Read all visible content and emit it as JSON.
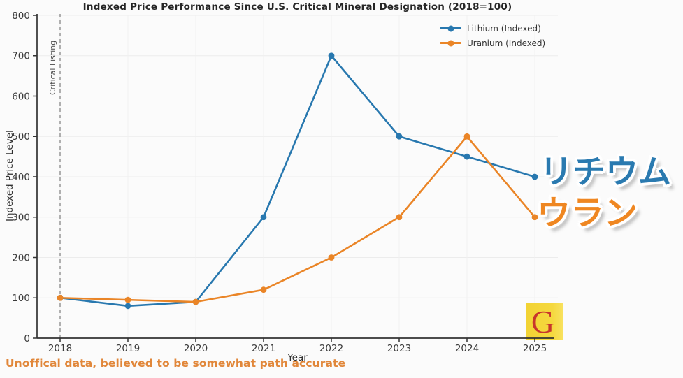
{
  "title": "Indexed Price Performance Since U.S. Critical Mineral Designation (2018=100)",
  "chart_data": {
    "type": "line",
    "x": [
      "2018",
      "2019",
      "2020",
      "2021",
      "2022",
      "2023",
      "2024",
      "2025"
    ],
    "series": [
      {
        "name": "Lithium (Indexed)",
        "color": "#2878af",
        "values": [
          100,
          80,
          90,
          300,
          700,
          500,
          450,
          400
        ]
      },
      {
        "name": "Uranium (Indexed)",
        "color": "#ea8527",
        "values": [
          100,
          95,
          90,
          120,
          200,
          300,
          500,
          300
        ]
      }
    ],
    "xlabel": "Year",
    "ylabel": "Indexed Price Level",
    "ylim": [
      0,
      800
    ],
    "yticks": [
      0,
      100,
      200,
      300,
      400,
      500,
      600,
      700,
      800
    ],
    "grid": true,
    "legend_position": "upper-right",
    "vline": {
      "x": "2018",
      "label": "Critical Listing",
      "style": "dashed",
      "color": "#8f8f8f"
    }
  },
  "annotations": {
    "lithium_jp": "リチウム",
    "uranium_jp": "ウラン",
    "footnote": "Unoffical data, believed to be somewhat path accurate",
    "watermark_letter": "G"
  },
  "colors": {
    "lithium_jp": "#2a7ab0",
    "uranium_jp": "#ef8722",
    "footnote": "#e1873a",
    "tick_text": "#3a3a3a",
    "spine": "#333333",
    "grid_h": "#ececec",
    "grid_v": "#f0f0f0"
  }
}
